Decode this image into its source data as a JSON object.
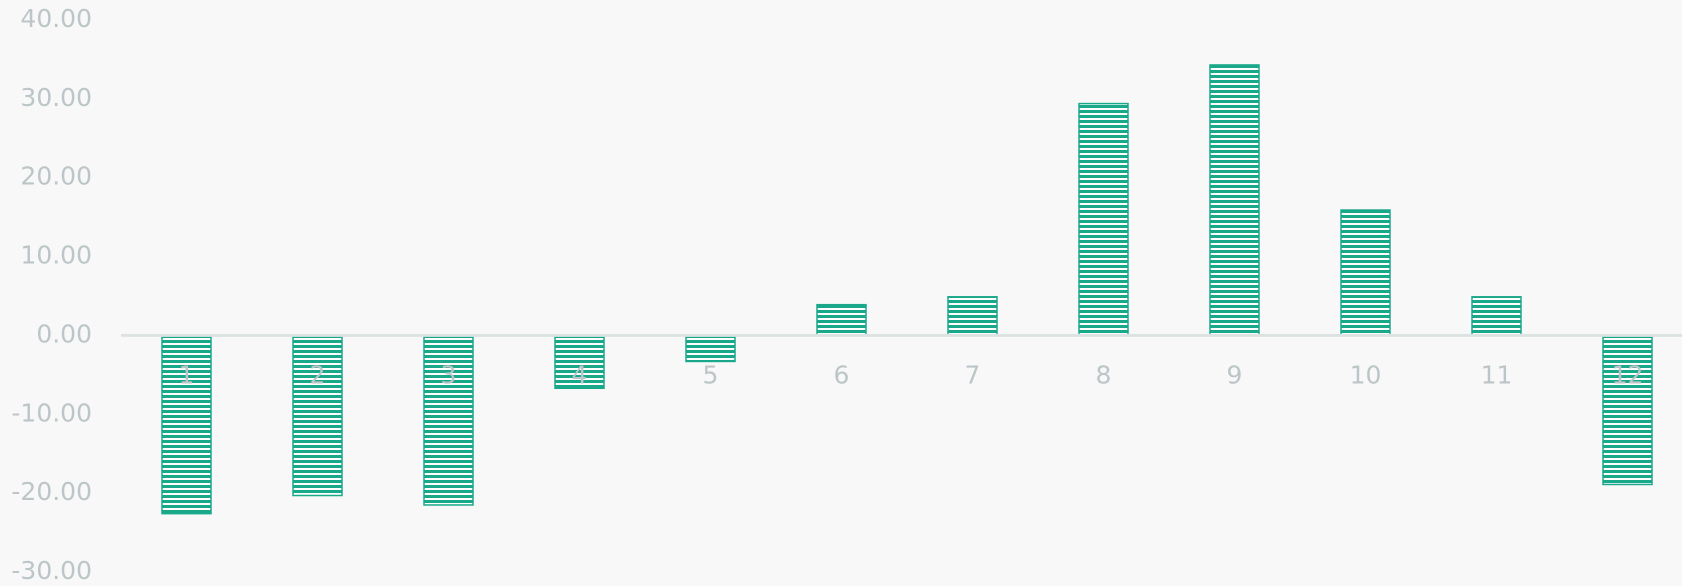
{
  "chart_data": {
    "type": "bar",
    "categories": [
      "1",
      "2",
      "3",
      "4",
      "5",
      "6",
      "7",
      "8",
      "9",
      "10",
      "11",
      "12"
    ],
    "values": [
      -22.6,
      -20.3,
      -21.5,
      -6.7,
      -3.3,
      3.9,
      4.9,
      29.4,
      34.3,
      15.9,
      4.9,
      -18.9
    ],
    "color": "#1aa88a",
    "ylim": [
      -30,
      40
    ],
    "yticks": [
      {
        "value": 40,
        "label": "40.00"
      },
      {
        "value": 30,
        "label": "30.00"
      },
      {
        "value": 20,
        "label": "20.00"
      },
      {
        "value": 10,
        "label": "10.00"
      },
      {
        "value": 0,
        "label": "0.00"
      },
      {
        "value": -10,
        "label": "-10.00"
      },
      {
        "value": -20,
        "label": "-20.00"
      },
      {
        "value": -30,
        "label": "-30.00"
      }
    ],
    "grid": false
  }
}
